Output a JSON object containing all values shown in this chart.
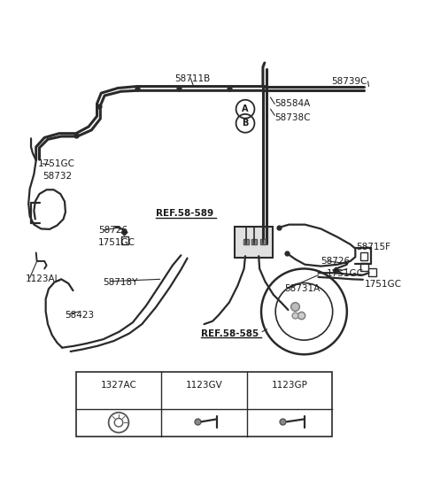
{
  "bg_color": "#ffffff",
  "line_color": "#2a2a2a",
  "text_color": "#1a1a1a",
  "fig_width": 4.8,
  "fig_height": 5.5,
  "dpi": 100,
  "table_labels": [
    "1327AC",
    "1123GV",
    "1123GP"
  ],
  "label_fontsize": 7.5,
  "lw_tube": 2.2,
  "lw_main": 1.6
}
